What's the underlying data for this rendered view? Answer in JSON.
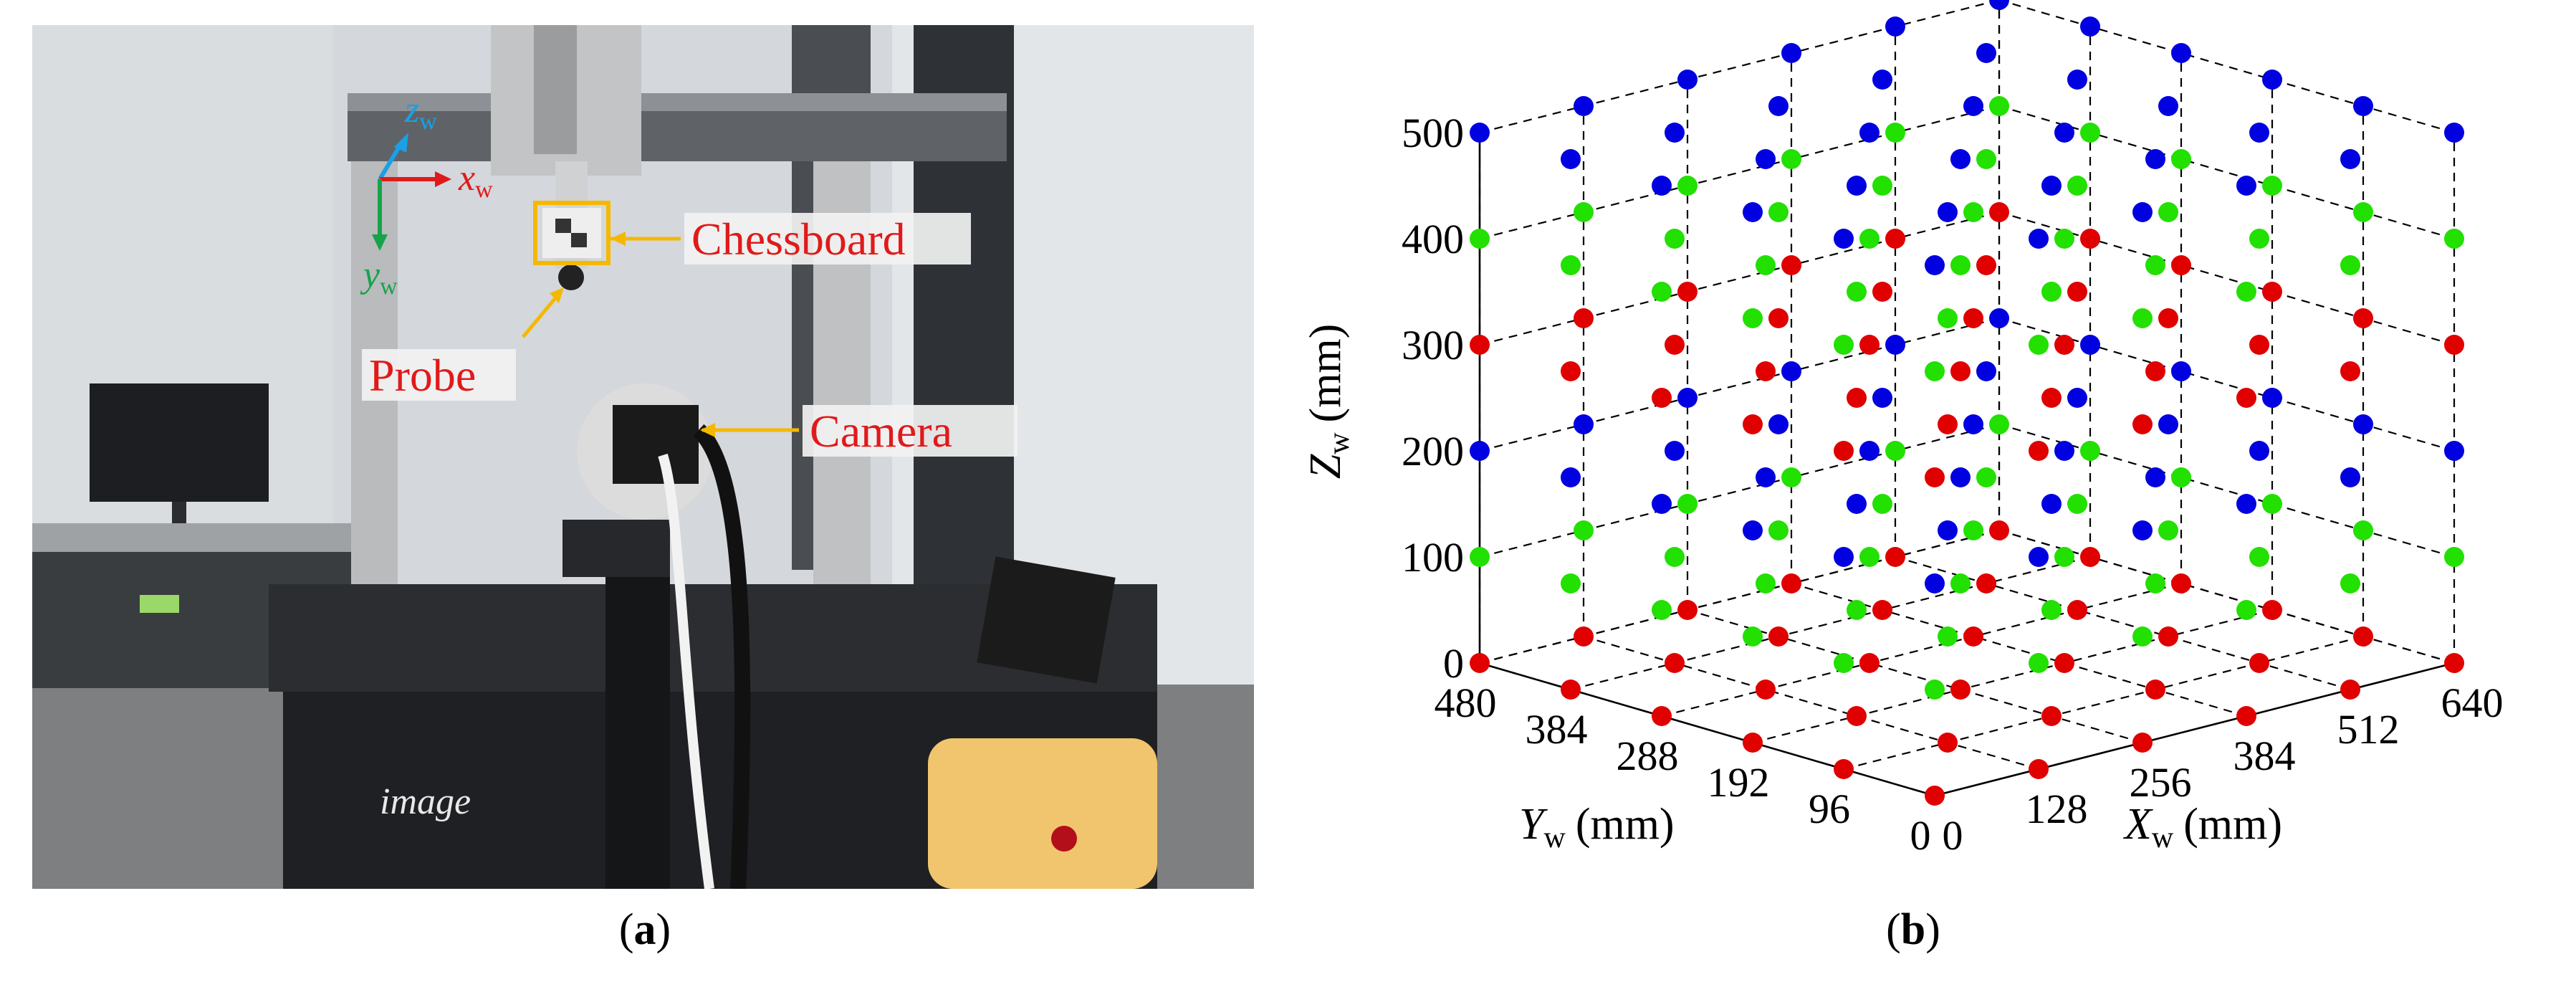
{
  "panel_a": {
    "caption_letter": "a",
    "axes": {
      "z": "z",
      "x": "x",
      "y": "y",
      "sub": "w"
    },
    "labels": {
      "chessboard": "Chessboard",
      "probe": "Probe",
      "camera": "Camera",
      "brand": "image"
    },
    "colors": {
      "label_red": "#e01a1a",
      "callout_orange": "#f5b800",
      "z_axis": "#1aa0e6",
      "x_axis": "#e01a1a",
      "y_axis": "#16a34a"
    }
  },
  "panel_b": {
    "caption_letter": "b",
    "axis_labels": {
      "z": {
        "main": "Z",
        "sub": "w",
        "unit": "(mm)"
      },
      "y": {
        "main": "Y",
        "sub": "w",
        "unit": "(mm)"
      },
      "x": {
        "main": "X",
        "sub": "w",
        "unit": "(mm)"
      }
    }
  },
  "chart_data": {
    "type": "scatter",
    "projection": "3d",
    "xlabel": "Xw (mm)",
    "ylabel": "Yw (mm)",
    "zlabel": "Zw (mm)",
    "xlim": [
      0,
      640
    ],
    "ylim": [
      0,
      480
    ],
    "zlim": [
      0,
      500
    ],
    "x_ticks": [
      0,
      128,
      256,
      384,
      512,
      640
    ],
    "y_ticks": [
      0,
      96,
      192,
      288,
      384,
      480
    ],
    "z_ticks": [
      0,
      100,
      200,
      300,
      400,
      500
    ],
    "grid": true,
    "point_grid": {
      "x": [
        0,
        128,
        256,
        384,
        512,
        640
      ],
      "y": [
        0,
        96,
        192,
        288,
        384,
        480
      ],
      "z": [
        0,
        100,
        200,
        300,
        400,
        500
      ]
    },
    "series": [
      {
        "z_values": [
          0,
          300
        ],
        "color": "#e00000"
      },
      {
        "z_values": [
          100,
          400
        ],
        "color": "#22e000"
      },
      {
        "z_values": [
          200,
          500
        ],
        "color": "#0000e0"
      }
    ]
  }
}
